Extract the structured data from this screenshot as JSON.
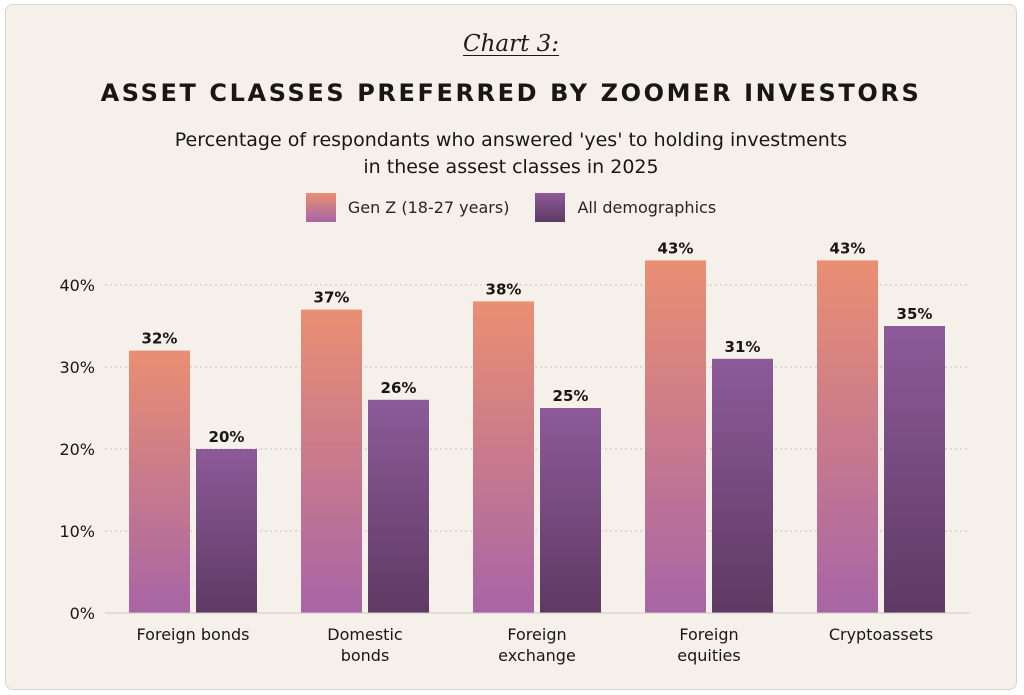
{
  "chart_label": "Chart 3:",
  "chart_data": {
    "type": "bar",
    "title": "ASSET CLASSES PREFERRED BY ZOOMER INVESTORS",
    "subtitle_lines": [
      "Percentage of respondants who answered 'yes' to holding investments",
      "in these assest classes in 2025"
    ],
    "categories": [
      [
        "Foreign bonds"
      ],
      [
        "Domestic",
        "bonds"
      ],
      [
        "Foreign",
        "exchange"
      ],
      [
        "Foreign",
        "equities"
      ],
      [
        "Cryptoassets"
      ]
    ],
    "series": [
      {
        "name": "Gen Z (18-27 years)",
        "values": [
          32,
          37,
          38,
          43,
          43
        ],
        "labels": [
          "32%",
          "37%",
          "38%",
          "43%",
          "43%"
        ],
        "color_top": "#ea8f72",
        "color_bottom": "#a765a6"
      },
      {
        "name": "All demographics",
        "values": [
          20,
          26,
          25,
          31,
          35
        ],
        "labels": [
          "20%",
          "26%",
          "25%",
          "31%",
          "35%"
        ],
        "color_top": "#8d5a99",
        "color_bottom": "#5e3a63"
      }
    ],
    "yticks": [
      0,
      10,
      20,
      30,
      40
    ],
    "ytick_labels": [
      "0%",
      "10%",
      "20%",
      "30%",
      "40%"
    ],
    "ylim": [
      0,
      44
    ],
    "xlabel": "",
    "ylabel": "",
    "grid": true,
    "legend_position": "top-center"
  }
}
